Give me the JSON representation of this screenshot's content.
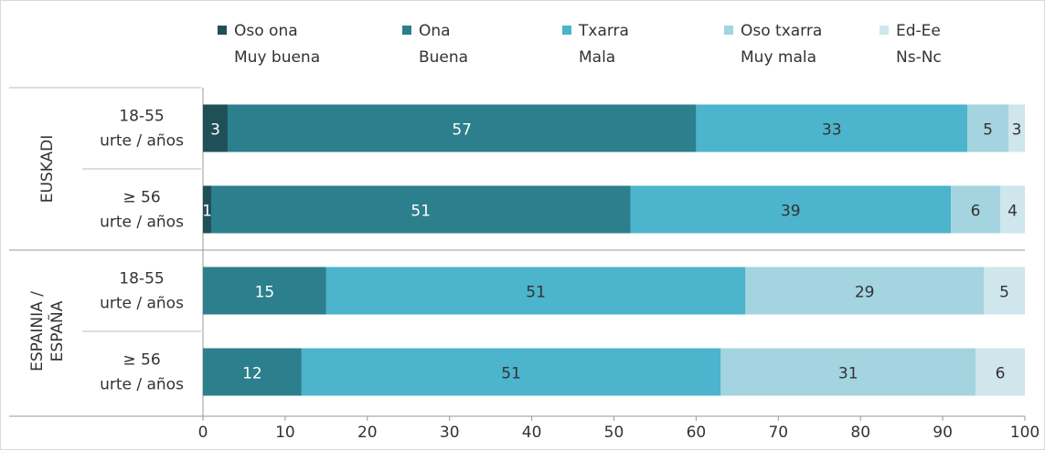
{
  "chart_data": {
    "type": "stacked-barh",
    "categories": [
      [
        "18-55",
        "urte / años"
      ],
      [
        "≥ 56",
        "urte / años"
      ],
      [
        "18-55",
        "urte / años"
      ],
      [
        "≥ 56",
        "urte / años"
      ]
    ],
    "groups": [
      [
        "EUSKADI"
      ],
      [
        "ESPAINIA /",
        "ESPAÑA"
      ]
    ],
    "series": [
      {
        "name": [
          "Oso ona",
          "Muy buena"
        ],
        "color": "#1f5058",
        "label_color": "#ffffff",
        "values": [
          3,
          1,
          null,
          null
        ]
      },
      {
        "name": [
          "Ona",
          "Buena"
        ],
        "color": "#2c7f8c",
        "label_color": "#ffffff",
        "values": [
          57,
          51,
          15,
          12
        ]
      },
      {
        "name": [
          "Txarra",
          "Mala"
        ],
        "color": "#4cb4cc",
        "label_color": "#333333",
        "values": [
          33,
          39,
          51,
          51
        ]
      },
      {
        "name": [
          "Oso txarra",
          "Muy mala"
        ],
        "color": "#a3d4df",
        "label_color": "#333333",
        "values": [
          5,
          6,
          29,
          31
        ]
      },
      {
        "name": [
          "Ed-Ee",
          "Ns-Nc"
        ],
        "color": "#cfe6ec",
        "label_color": "#333333",
        "values": [
          3,
          4,
          5,
          6
        ]
      }
    ],
    "xlim": [
      0,
      100
    ],
    "xticks": [
      0,
      10,
      20,
      30,
      40,
      50,
      60,
      70,
      80,
      90,
      100
    ]
  }
}
